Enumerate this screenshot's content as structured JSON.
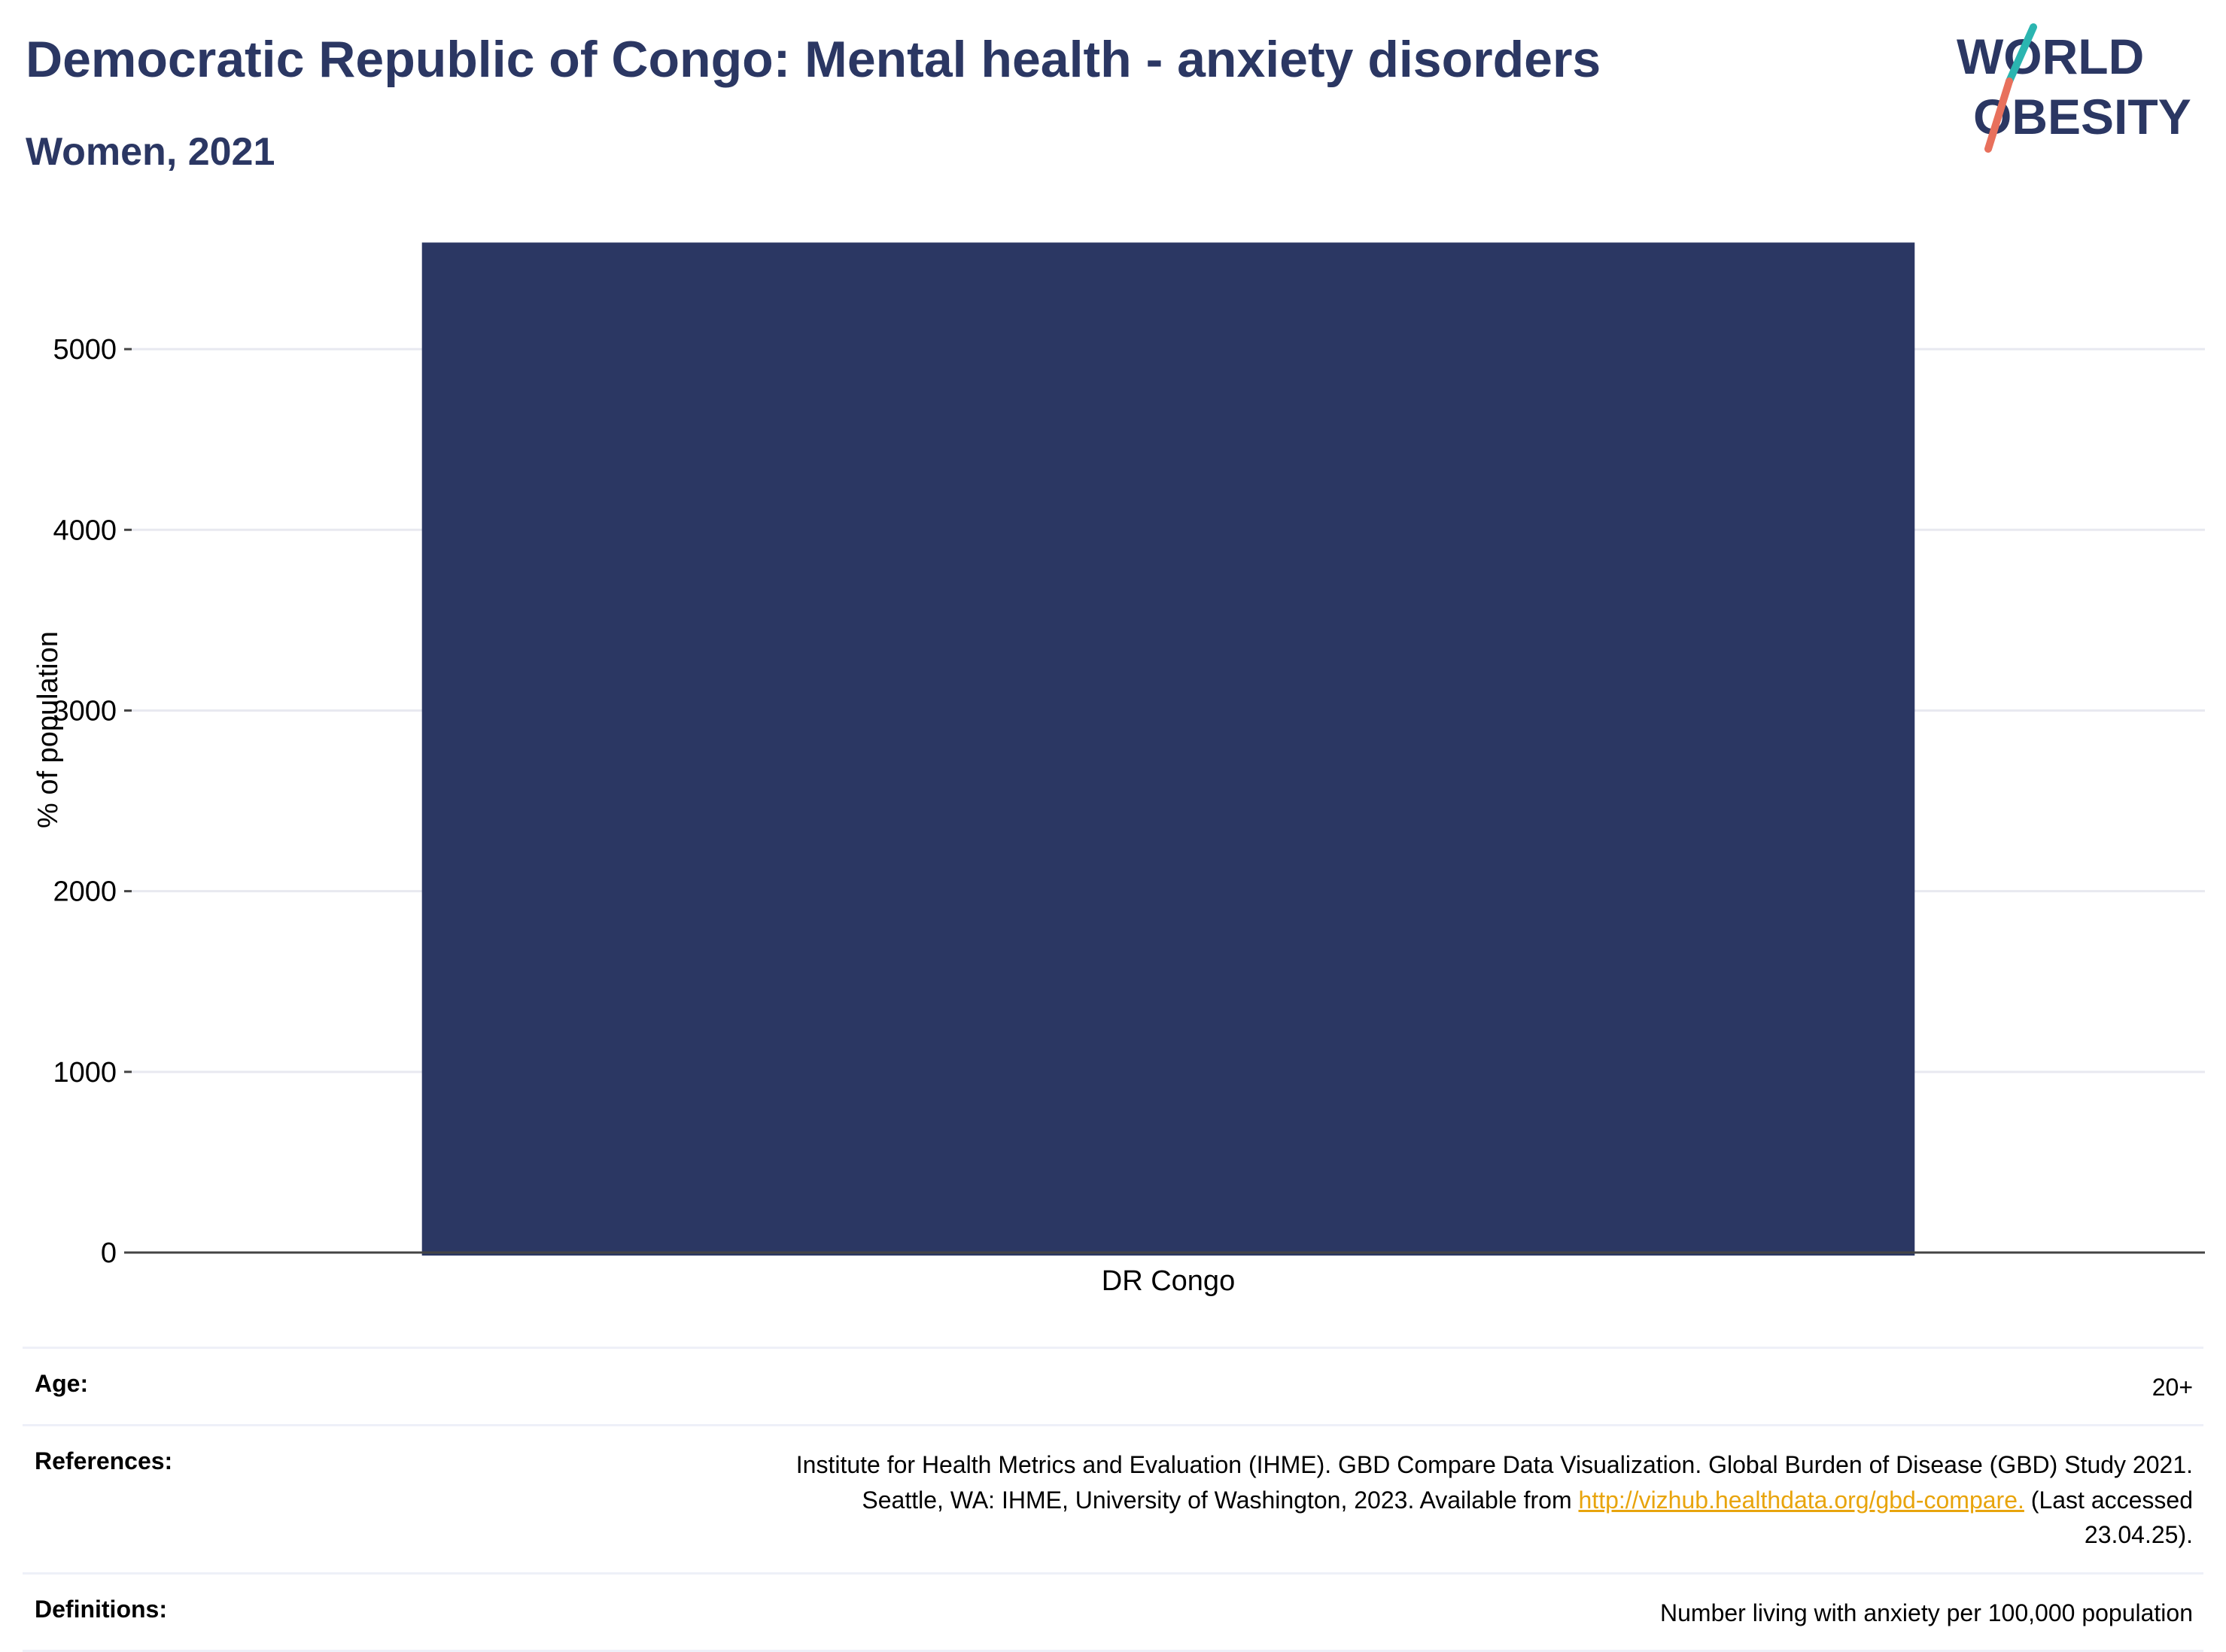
{
  "header": {
    "title": "Democratic Republic of Congo: Mental health - anxiety disorders",
    "subtitle": "Women, 2021"
  },
  "logo": {
    "line1": "WORLD",
    "line2": "OBESITY",
    "colors": {
      "text": "#2b3763",
      "slash_teal": "#2bb5b0",
      "slash_coral": "#e8705c"
    }
  },
  "colors": {
    "bar": "#2b3763",
    "title": "#2b3763",
    "grid": "#e8e9f0",
    "axis": "#444444",
    "link": "#e8a40c"
  },
  "chart_data": {
    "type": "bar",
    "categories": [
      "DR Congo"
    ],
    "values": [
      5590
    ],
    "ylabel": "% of population",
    "xlabel": "",
    "ylim": [
      0,
      5600
    ],
    "yticks": [
      0,
      1000,
      2000,
      3000,
      4000,
      5000
    ],
    "grid": true
  },
  "info": {
    "age_label": "Age:",
    "age_value": "20+",
    "references_label": "References:",
    "references_line1": "Institute for Health Metrics and Evaluation (IHME). GBD Compare Data Visualization. Global Burden of Disease (GBD) Study 2021.",
    "references_line2_prefix": "Seattle, WA: IHME, University of Washington, 2023. Available from ",
    "references_link": "http://vizhub.healthdata.org/gbd-compare.",
    "references_line2_suffix": " (Last accessed",
    "references_line3": "23.04.25).",
    "definitions_label": "Definitions:",
    "definitions_value": "Number living with anxiety per 100,000 population"
  }
}
